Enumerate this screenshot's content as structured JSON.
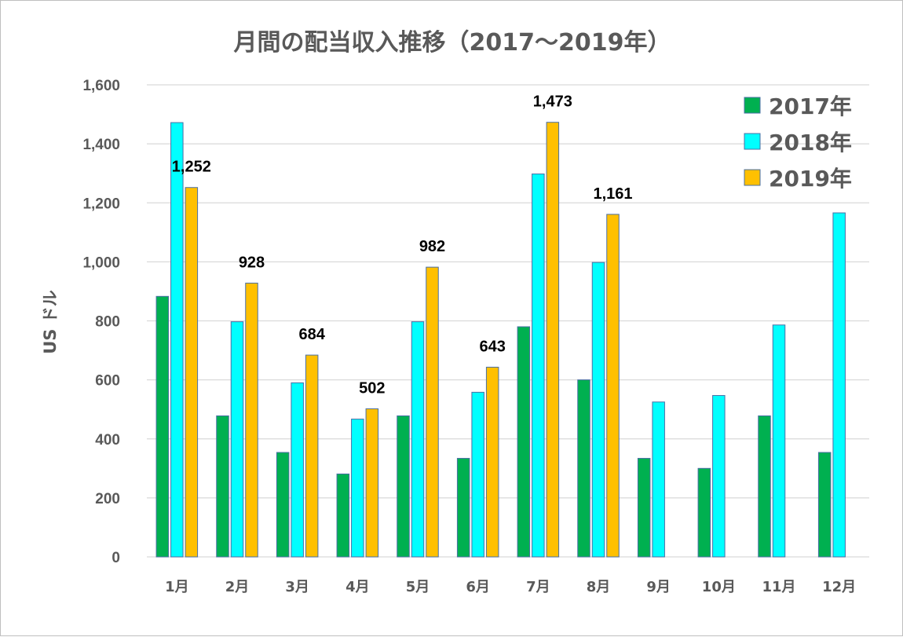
{
  "chart_data": {
    "type": "bar",
    "title": "月間の配当収入推移（2017〜2019年）",
    "xlabel": "",
    "ylabel": "US ドル",
    "ylim": [
      0,
      1600
    ],
    "yticks": [
      0,
      200,
      400,
      600,
      800,
      1000,
      1200,
      1400,
      1600
    ],
    "ytick_labels": [
      "0",
      "200",
      "400",
      "600",
      "800",
      "1,000",
      "1,200",
      "1,400",
      "1,600"
    ],
    "grid": true,
    "legend_position": "top-right",
    "categories": [
      "1月",
      "2月",
      "3月",
      "4月",
      "5月",
      "6月",
      "7月",
      "8月",
      "9月",
      "10月",
      "11月",
      "12月"
    ],
    "series": [
      {
        "name": "2017年",
        "color": "#00b050",
        "values": [
          883,
          478,
          354,
          281,
          478,
          334,
          780,
          600,
          334,
          300,
          478,
          354
        ]
      },
      {
        "name": "2018年",
        "color": "#00ffff",
        "values": [
          1472,
          797,
          590,
          467,
          797,
          558,
          1298,
          998,
          525,
          547,
          786,
          1166
        ]
      },
      {
        "name": "2019年",
        "color": "#ffc000",
        "values": [
          1252,
          928,
          684,
          502,
          982,
          643,
          1473,
          1161,
          null,
          null,
          null,
          null
        ],
        "data_labels": [
          "1,252",
          "928",
          "684",
          "502",
          "982",
          "643",
          "1,473",
          "1,161",
          "",
          "",
          "",
          ""
        ]
      }
    ]
  }
}
